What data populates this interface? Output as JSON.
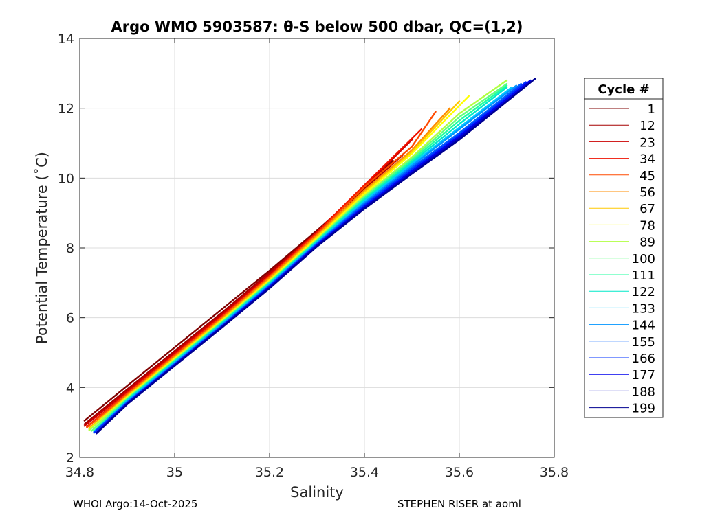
{
  "chart_data": {
    "type": "line",
    "title": "Argo WMO 5903587: θ-S below 500 dbar,  QC=(1,2)",
    "xlabel": "Salinity",
    "ylabel": "Potential Temperature (˚C)",
    "xlim": [
      34.8,
      35.8
    ],
    "ylim": [
      2,
      14
    ],
    "xticks": [
      "34.8",
      "35",
      "35.2",
      "35.4",
      "35.6",
      "35.8"
    ],
    "yticks": [
      "2",
      "4",
      "6",
      "8",
      "10",
      "12",
      "14"
    ],
    "grid": true,
    "legend": {
      "title": "Cycle #",
      "position": "right, outside plot",
      "entries": [
        "1",
        "12",
        "23",
        "34",
        "45",
        "56",
        "67",
        "78",
        "89",
        "100",
        "111",
        "122",
        "133",
        "144",
        "155",
        "166",
        "177",
        "188",
        "199"
      ]
    },
    "colormap": "jet",
    "series": [
      {
        "name": "1",
        "color": "#7f0000",
        "x": [
          34.81,
          34.9,
          35.0,
          35.1,
          35.2,
          35.3,
          35.4,
          35.46
        ],
        "y": [
          3.05,
          4.05,
          5.15,
          6.25,
          7.35,
          8.5,
          9.7,
          10.5
        ]
      },
      {
        "name": "12",
        "color": "#a50000",
        "x": [
          34.81,
          34.9,
          35.0,
          35.1,
          35.2,
          35.3,
          35.4,
          35.48
        ],
        "y": [
          2.95,
          3.95,
          5.05,
          6.15,
          7.3,
          8.45,
          9.7,
          10.65
        ]
      },
      {
        "name": "23",
        "color": "#cc0000",
        "x": [
          34.81,
          34.9,
          35.0,
          35.1,
          35.2,
          35.3,
          35.4,
          35.5
        ],
        "y": [
          2.9,
          3.9,
          5.0,
          6.1,
          7.25,
          8.45,
          9.75,
          11.1
        ]
      },
      {
        "name": "34",
        "color": "#ee1100",
        "x": [
          34.815,
          34.9,
          35.0,
          35.1,
          35.2,
          35.3,
          35.4,
          35.52
        ],
        "y": [
          2.88,
          3.85,
          4.95,
          6.05,
          7.2,
          8.45,
          9.8,
          11.4
        ]
      },
      {
        "name": "45",
        "color": "#ff4a00",
        "x": [
          34.815,
          34.9,
          35.0,
          35.1,
          35.2,
          35.3,
          35.4,
          35.5,
          35.55
        ],
        "y": [
          2.86,
          3.82,
          4.92,
          6.02,
          7.18,
          8.4,
          9.75,
          10.9,
          11.9
        ]
      },
      {
        "name": "56",
        "color": "#ff8c00",
        "x": [
          34.82,
          34.9,
          35.0,
          35.1,
          35.2,
          35.3,
          35.4,
          35.5,
          35.58
        ],
        "y": [
          2.84,
          3.78,
          4.88,
          5.98,
          7.14,
          8.36,
          9.65,
          10.8,
          12.0
        ]
      },
      {
        "name": "67",
        "color": "#ffc800",
        "x": [
          34.82,
          34.9,
          35.0,
          35.1,
          35.2,
          35.3,
          35.4,
          35.5,
          35.6
        ],
        "y": [
          2.82,
          3.75,
          4.85,
          5.95,
          7.1,
          8.32,
          9.6,
          10.75,
          12.2
        ]
      },
      {
        "name": "78",
        "color": "#ffff00",
        "x": [
          34.82,
          34.9,
          35.0,
          35.1,
          35.2,
          35.3,
          35.4,
          35.5,
          35.62
        ],
        "y": [
          2.8,
          3.72,
          4.82,
          5.92,
          7.07,
          8.28,
          9.55,
          10.7,
          12.35
        ]
      },
      {
        "name": "89",
        "color": "#b0ff40",
        "x": [
          34.82,
          34.9,
          35.0,
          35.1,
          35.2,
          35.3,
          35.4,
          35.5,
          35.6,
          35.7
        ],
        "y": [
          2.78,
          3.7,
          4.8,
          5.9,
          7.04,
          8.24,
          9.5,
          10.6,
          11.85,
          12.8
        ]
      },
      {
        "name": "100",
        "color": "#60ff80",
        "x": [
          34.825,
          34.9,
          35.0,
          35.1,
          35.2,
          35.3,
          35.4,
          35.5,
          35.6,
          35.7
        ],
        "y": [
          2.76,
          3.68,
          4.78,
          5.88,
          7.02,
          8.22,
          9.46,
          10.55,
          11.75,
          12.7
        ]
      },
      {
        "name": "111",
        "color": "#20ff9f",
        "x": [
          34.83,
          34.9,
          35.0,
          35.1,
          35.2,
          35.3,
          35.4,
          35.5,
          35.6,
          35.7
        ],
        "y": [
          2.75,
          3.66,
          4.76,
          5.86,
          7.0,
          8.2,
          9.42,
          10.5,
          11.65,
          12.65
        ]
      },
      {
        "name": "122",
        "color": "#00e8c8",
        "x": [
          34.83,
          34.9,
          35.0,
          35.1,
          35.2,
          35.3,
          35.4,
          35.5,
          35.6,
          35.7
        ],
        "y": [
          2.74,
          3.64,
          4.74,
          5.84,
          6.98,
          8.18,
          9.38,
          10.45,
          11.55,
          12.6
        ]
      },
      {
        "name": "133",
        "color": "#00c8ff",
        "x": [
          34.83,
          34.9,
          35.0,
          35.1,
          35.2,
          35.3,
          35.4,
          35.5,
          35.6,
          35.71
        ],
        "y": [
          2.73,
          3.62,
          4.72,
          5.82,
          6.96,
          8.16,
          9.34,
          10.4,
          11.45,
          12.6
        ]
      },
      {
        "name": "144",
        "color": "#0095ff",
        "x": [
          34.83,
          34.9,
          35.0,
          35.1,
          35.2,
          35.3,
          35.4,
          35.5,
          35.6,
          35.72
        ],
        "y": [
          2.72,
          3.6,
          4.7,
          5.8,
          6.94,
          8.14,
          9.3,
          10.35,
          11.4,
          12.65
        ]
      },
      {
        "name": "155",
        "color": "#0060ff",
        "x": [
          34.83,
          34.9,
          35.0,
          35.1,
          35.2,
          35.3,
          35.4,
          35.5,
          35.6,
          35.73
        ],
        "y": [
          2.71,
          3.58,
          4.68,
          5.78,
          6.92,
          8.12,
          9.26,
          10.3,
          11.3,
          12.7
        ]
      },
      {
        "name": "166",
        "color": "#0030ff",
        "x": [
          34.83,
          34.9,
          35.0,
          35.1,
          35.2,
          35.3,
          35.4,
          35.5,
          35.6,
          35.74
        ],
        "y": [
          2.7,
          3.56,
          4.66,
          5.76,
          6.9,
          8.1,
          9.22,
          10.25,
          11.25,
          12.75
        ]
      },
      {
        "name": "177",
        "color": "#0000ee",
        "x": [
          34.835,
          34.9,
          35.0,
          35.1,
          35.2,
          35.3,
          35.4,
          35.5,
          35.6,
          35.75
        ],
        "y": [
          2.7,
          3.55,
          4.65,
          5.75,
          6.88,
          8.08,
          9.18,
          10.2,
          11.2,
          12.8
        ]
      },
      {
        "name": "188",
        "color": "#0000c0",
        "x": [
          34.835,
          34.9,
          35.0,
          35.1,
          35.2,
          35.3,
          35.4,
          35.5,
          35.6,
          35.76
        ],
        "y": [
          2.69,
          3.54,
          4.64,
          5.74,
          6.86,
          8.06,
          9.15,
          10.15,
          11.15,
          12.85
        ]
      },
      {
        "name": "199",
        "color": "#000090",
        "x": [
          34.835,
          34.9,
          35.0,
          35.1,
          35.2,
          35.3,
          35.4,
          35.5,
          35.6,
          35.76
        ],
        "y": [
          2.68,
          3.52,
          4.62,
          5.72,
          6.84,
          8.04,
          9.12,
          10.12,
          11.1,
          12.85
        ]
      }
    ]
  },
  "footer": {
    "left": "WHOI Argo:14-Oct-2025",
    "right": "STEPHEN RISER at aoml"
  }
}
